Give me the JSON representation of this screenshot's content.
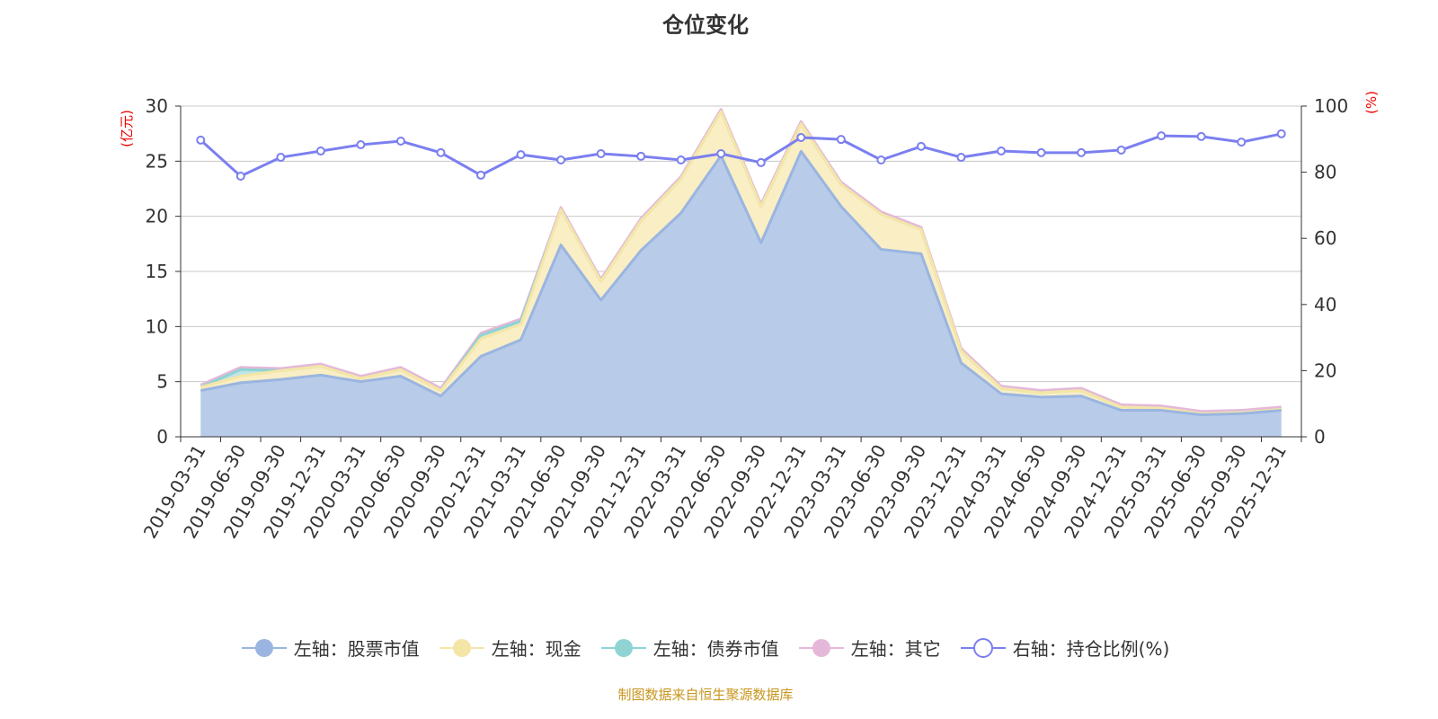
{
  "title": "仓位变化",
  "footer": "制图数据来自恒生聚源数据库",
  "chart_data": {
    "type": "area",
    "title": "仓位变化",
    "left_axis": {
      "label": "(亿元)",
      "min": 0,
      "max": 30,
      "ticks": [
        0,
        5,
        10,
        15,
        20,
        25,
        30
      ]
    },
    "right_axis": {
      "label": "(%)",
      "min": 0,
      "max": 100,
      "ticks": [
        0,
        20,
        40,
        60,
        80,
        100
      ]
    },
    "grid": true,
    "legend_position": "bottom",
    "categories": [
      "2019-03-31",
      "2019-06-30",
      "2019-09-30",
      "2019-12-31",
      "2020-03-31",
      "2020-06-30",
      "2020-09-30",
      "2020-12-31",
      "2021-03-31",
      "2021-06-30",
      "2021-09-30",
      "2021-12-31",
      "2022-03-31",
      "2022-06-30",
      "2022-09-30",
      "2022-12-31",
      "2023-03-31",
      "2023-06-30",
      "2023-09-30",
      "2023-12-31",
      "2024-03-31",
      "2024-06-30",
      "2024-09-30",
      "2024-12-31",
      "2025-03-31",
      "2025-06-30",
      "2025-09-30",
      "2025-12-31"
    ],
    "series": [
      {
        "name": "左轴：股票市值",
        "axis": "left",
        "stacked": true,
        "color": "#9ab5e0",
        "fill": "#b8cbe9",
        "values": [
          4.2,
          4.9,
          5.2,
          5.6,
          5.0,
          5.5,
          3.7,
          7.3,
          8.8,
          17.4,
          12.4,
          16.9,
          20.3,
          25.5,
          17.6,
          25.9,
          20.9,
          17.0,
          16.6,
          6.7,
          3.9,
          3.6,
          3.7,
          2.4,
          2.4,
          2.0,
          2.1,
          2.4
        ]
      },
      {
        "name": "左轴：现金",
        "axis": "left",
        "stacked": true,
        "color": "#f5e6a6",
        "fill": "#f9eec4",
        "values": [
          0.3,
          0.6,
          0.8,
          0.8,
          0.3,
          0.6,
          0.5,
          1.6,
          1.4,
          3.2,
          1.7,
          2.7,
          3.1,
          4.0,
          3.3,
          2.5,
          2.0,
          3.2,
          2.2,
          1.1,
          0.5,
          0.4,
          0.5,
          0.3,
          0.2,
          0.1,
          0.1,
          0.1
        ]
      },
      {
        "name": "左轴：债券市值",
        "axis": "left",
        "stacked": true,
        "color": "#8fd3d3",
        "fill": "#bfe6e6",
        "values": [
          0,
          0.6,
          0,
          0,
          0,
          0,
          0,
          0.3,
          0.3,
          0,
          0,
          0,
          0,
          0,
          0,
          0,
          0,
          0,
          0,
          0,
          0,
          0,
          0,
          0,
          0,
          0,
          0,
          0
        ]
      },
      {
        "name": "左轴：其它",
        "axis": "left",
        "stacked": true,
        "color": "#e5b8da",
        "fill": "#efd3e7",
        "values": [
          0.2,
          0.2,
          0.2,
          0.2,
          0.2,
          0.2,
          0.2,
          0.2,
          0.2,
          0.2,
          0.2,
          0.2,
          0.2,
          0.2,
          0.2,
          0.2,
          0.2,
          0.2,
          0.2,
          0.2,
          0.2,
          0.2,
          0.2,
          0.2,
          0.2,
          0.2,
          0.2,
          0.2
        ]
      },
      {
        "name": "右轴：持仓比例(%)",
        "axis": "right",
        "stacked": false,
        "color": "#7b7ff0",
        "values": [
          89.7,
          78.8,
          84.5,
          86.4,
          88.3,
          89.4,
          85.9,
          79.1,
          85.3,
          83.7,
          85.6,
          84.8,
          83.7,
          85.6,
          82.9,
          90.5,
          89.9,
          83.7,
          87.8,
          84.5,
          86.4,
          85.9,
          85.9,
          86.7,
          91.0,
          90.8,
          89.1,
          91.6
        ]
      }
    ]
  }
}
